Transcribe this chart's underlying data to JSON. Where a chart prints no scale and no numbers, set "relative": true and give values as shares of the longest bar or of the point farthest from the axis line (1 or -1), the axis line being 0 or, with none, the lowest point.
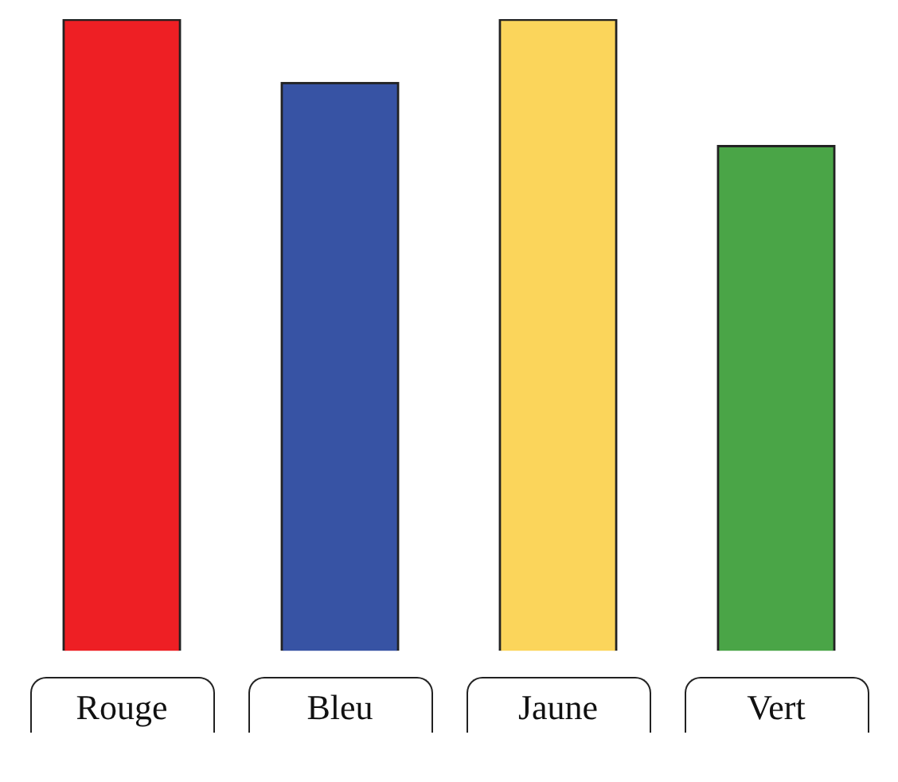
{
  "chart_data": {
    "type": "bar",
    "relative": true,
    "categories": [
      "Rouge",
      "Bleu",
      "Jaune",
      "Vert"
    ],
    "values": [
      1,
      0.9,
      1,
      0.8
    ],
    "colors": [
      "#ee1f24",
      "#3753a4",
      "#fbd55b",
      "#4aa547"
    ],
    "grid": false,
    "legend": false
  }
}
